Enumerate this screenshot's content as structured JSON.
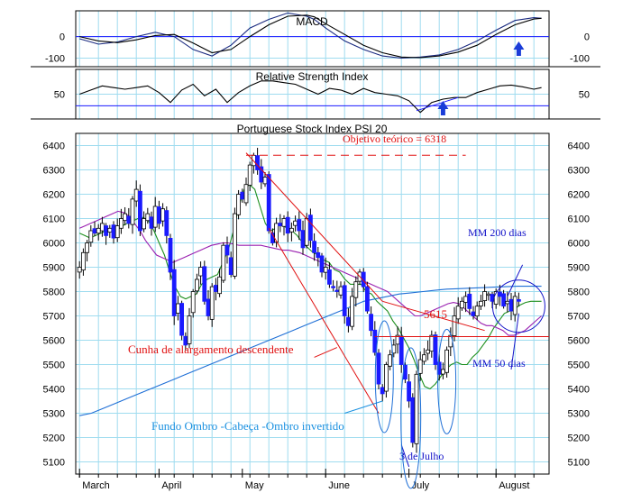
{
  "colors": {
    "grid": "#9fdcef",
    "frame": "#000000",
    "bull": "#ffffff",
    "bear": "#1a1aff",
    "ma_green": "#1e8f1e",
    "ma_purple": "#9a1fb0",
    "ma_blue": "#1f6fd6",
    "red": "#e01010",
    "blue_text": "#1212c8",
    "lightblue_text": "#1a90e0",
    "arrow": "#1a3cd8"
  },
  "chart_data": [
    {
      "type": "line",
      "title": "MACD",
      "y_ticks": [
        "0",
        "-100"
      ],
      "ylim": [
        -140,
        120
      ],
      "series": [
        {
          "role": "macd",
          "x": [
            0,
            5,
            10,
            15,
            20,
            25,
            30,
            35,
            40,
            45,
            50,
            55,
            60,
            62,
            65,
            70,
            75,
            80,
            85,
            90,
            95,
            100,
            105,
            110,
            115,
            120,
            122
          ],
          "values": [
            -10,
            -35,
            -25,
            0,
            20,
            0,
            -60,
            -90,
            -40,
            40,
            80,
            110,
            95,
            80,
            40,
            -20,
            -60,
            -90,
            -100,
            -95,
            -85,
            -60,
            -20,
            30,
            75,
            88,
            85
          ]
        },
        {
          "role": "signal",
          "x": [
            0,
            5,
            10,
            15,
            20,
            25,
            30,
            35,
            40,
            45,
            50,
            55,
            60,
            62,
            65,
            70,
            75,
            80,
            85,
            90,
            95,
            100,
            105,
            110,
            115,
            120,
            122
          ],
          "values": [
            0,
            -20,
            -28,
            -15,
            5,
            10,
            -30,
            -75,
            -60,
            0,
            55,
            95,
            100,
            92,
            60,
            10,
            -40,
            -75,
            -95,
            -98,
            -90,
            -72,
            -40,
            10,
            55,
            82,
            85
          ]
        }
      ],
      "guide_level": 0
    },
    {
      "type": "line",
      "title": "Relative Strength Index",
      "y_ticks": [
        "50"
      ],
      "ylim": [
        20,
        80
      ],
      "series": [
        {
          "role": "rsi",
          "x": [
            0,
            3,
            6,
            9,
            12,
            15,
            18,
            21,
            24,
            27,
            30,
            33,
            36,
            39,
            42,
            45,
            48,
            51,
            54,
            57,
            60,
            63,
            66,
            69,
            72,
            75,
            78,
            81,
            84,
            87,
            90,
            93,
            96,
            99,
            102,
            105,
            108,
            111,
            114,
            117,
            120,
            122
          ],
          "values": [
            50,
            55,
            60,
            58,
            56,
            58,
            60,
            52,
            40,
            55,
            62,
            48,
            56,
            40,
            52,
            60,
            66,
            66,
            64,
            62,
            56,
            50,
            57,
            55,
            50,
            57,
            52,
            50,
            48,
            42,
            28,
            40,
            44,
            46,
            46,
            52,
            56,
            60,
            61,
            59,
            56,
            58
          ]
        }
      ],
      "guide_level": 36
    },
    {
      "type": "candlestick",
      "title": "Portuguese Stock Index PSI 20",
      "y_ticks": [
        "6400",
        "6300",
        "6200",
        "6100",
        "6000",
        "5900",
        "5800",
        "5700",
        "5600",
        "5500",
        "5400",
        "5300",
        "5200",
        "5100"
      ],
      "ylim": [
        5050,
        6450
      ],
      "x_labels": [
        {
          "label": "March",
          "x": 0
        },
        {
          "label": "April",
          "x": 21
        },
        {
          "label": "May",
          "x": 43
        },
        {
          "label": "June",
          "x": 65
        },
        {
          "label": "July",
          "x": 87
        },
        {
          "label": "August",
          "x": 110
        }
      ],
      "x_range": [
        -1,
        124
      ],
      "close": [
        5900,
        5960,
        6000,
        6050,
        6040,
        6060,
        6080,
        6030,
        6060,
        6020,
        6070,
        6100,
        6120,
        6080,
        6180,
        6220,
        6050,
        6100,
        6120,
        6060,
        6150,
        6080,
        6140,
        6030,
        5880,
        5700,
        5750,
        5620,
        5580,
        5700,
        5800,
        5850,
        5900,
        5760,
        5700,
        5820,
        5800,
        5860,
        5990,
        5950,
        5870,
        6120,
        6200,
        6180,
        6240,
        6320,
        6360,
        6300,
        6250,
        6270,
        6050,
        6000,
        6080,
        6070,
        6100,
        6040,
        6060,
        6090,
        6050,
        5980,
        6100,
        6010,
        5960,
        5940,
        5880,
        5900,
        5830,
        5820,
        5800,
        5820,
        5700,
        5660,
        5780,
        5840,
        5880,
        5820,
        5720,
        5640,
        5550,
        5420,
        5380,
        5500,
        5540,
        5580,
        5620,
        5500,
        5440,
        5350,
        5180,
        5460,
        5520,
        5540,
        5560,
        5620,
        5500,
        5460,
        5480,
        5560,
        5620,
        5700,
        5740,
        5760,
        5780,
        5730,
        5700,
        5740,
        5760,
        5800,
        5790,
        5760,
        5800,
        5780,
        5740,
        5760,
        5720,
        5780,
        5760
      ],
      "horizontal_ref": 5615,
      "moving_averages": [
        {
          "role": "short",
          "values": [
            6040,
            6030,
            6020,
            6030,
            6040,
            6050,
            6060,
            6060,
            6070,
            6080,
            6090,
            6100,
            6105,
            6090,
            6050,
            6000,
            5950,
            5880,
            5820,
            5780,
            5770,
            5780,
            5790,
            5830,
            5850,
            5860,
            5870,
            5920,
            5970,
            6050,
            6150,
            6220,
            6240,
            6220,
            6150,
            6080,
            6050,
            6060,
            6080,
            6060,
            6050,
            6030,
            6000,
            5980,
            5960,
            5950,
            5930,
            5920,
            5890,
            5880,
            5850,
            5830,
            5830,
            5830,
            5800,
            5790,
            5760,
            5740,
            5720,
            5680,
            5650,
            5610,
            5570,
            5520,
            5460,
            5410,
            5400,
            5420,
            5450,
            5480,
            5500,
            5510,
            5500,
            5500,
            5530,
            5550,
            5580,
            5610,
            5650,
            5680,
            5710,
            5720,
            5730,
            5745,
            5755,
            5760,
            5760,
            5760
          ]
        },
        {
          "role": "medium",
          "values": [
            6060,
            6070,
            6080,
            6090,
            6100,
            6110,
            6120,
            6130,
            6125,
            6110,
            6080,
            6050,
            6010,
            5980,
            5950,
            5940,
            5930,
            5920,
            5930,
            5940,
            5950,
            5960,
            5970,
            5980,
            5990,
            5995,
            6000,
            6000,
            5995,
            5990,
            5990,
            5990,
            5990,
            5990,
            5985,
            5980,
            5975,
            5970,
            5970,
            5965,
            5960,
            5950,
            5940,
            5930,
            5920,
            5910,
            5900,
            5890,
            5880,
            5870,
            5860,
            5850,
            5840,
            5830,
            5820,
            5810,
            5800,
            5780,
            5760,
            5740,
            5720,
            5700,
            5700,
            5710,
            5720,
            5730,
            5740,
            5750,
            5755,
            5750,
            5730,
            5710,
            5690,
            5670,
            5660,
            5660,
            5650,
            5640,
            5620,
            5620,
            5630,
            5640,
            5660,
            5680,
            5700
          ]
        },
        {
          "role": "long",
          "values": [
            5290,
            5300,
            5320,
            5340,
            5360,
            5380,
            5400,
            5420,
            5440,
            5460,
            5480,
            5500,
            5520,
            5540,
            5560,
            5580,
            5600,
            5620,
            5640,
            5660,
            5680,
            5700,
            5720,
            5740,
            5760,
            5770,
            5780,
            5790,
            5795,
            5800,
            5805,
            5810,
            5812,
            5814,
            5816,
            5818,
            5820,
            5822,
            5822,
            5822
          ]
        }
      ],
      "annotations": {
        "target": "Objetivo teórico = 6318",
        "ref_label": "5615",
        "ma200": "MM 200 dias",
        "ma50": "MM 50 dias",
        "wedge": "Cunha de alargamento descendente",
        "hs": "Fundo  Ombro -Cabeça -Ombro invertido",
        "date": "3 de Julho"
      }
    }
  ]
}
